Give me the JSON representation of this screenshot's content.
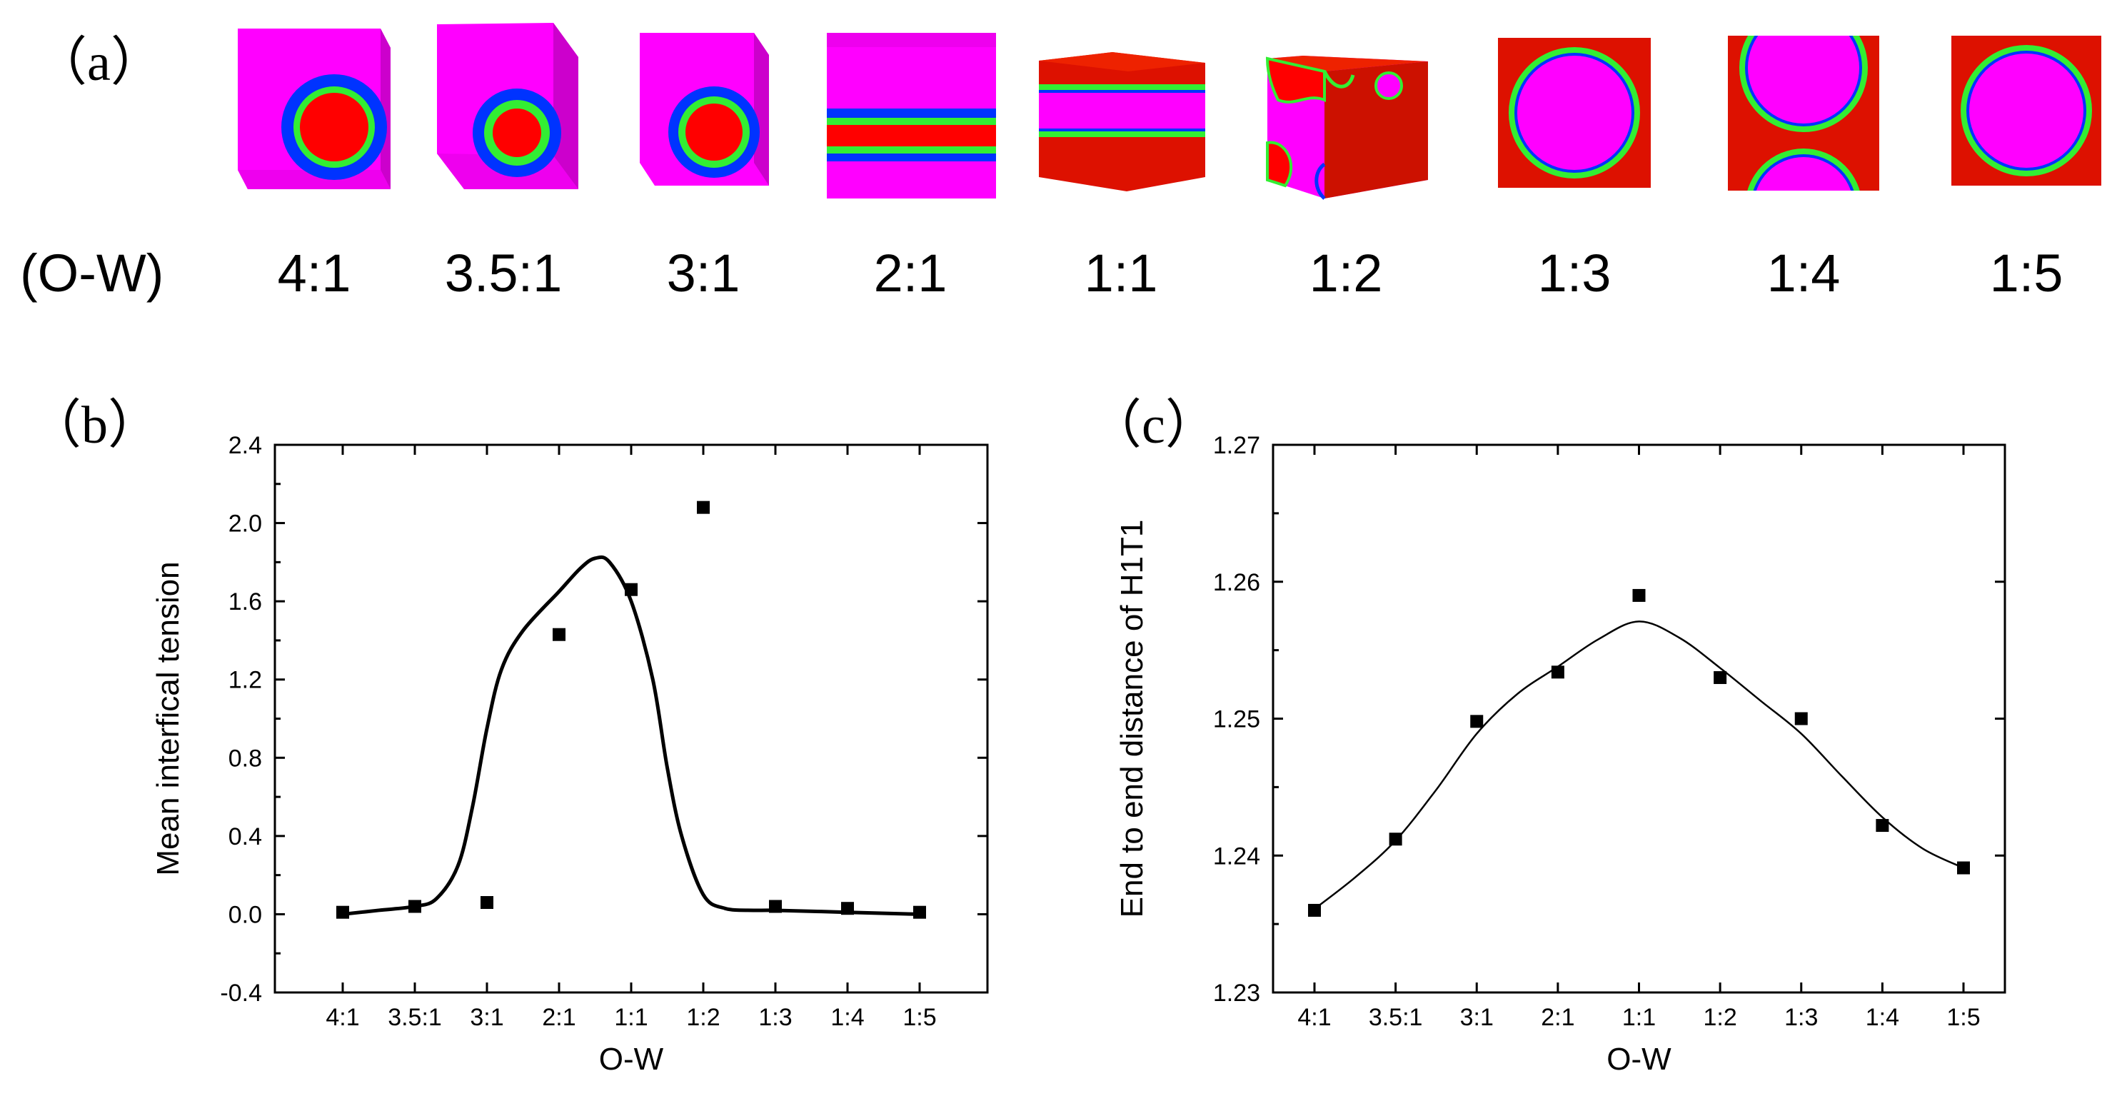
{
  "panel_a": {
    "label": "（a）",
    "ratio_prefix": "(O-W)",
    "ratios": [
      "4:1",
      "3.5:1",
      "3:1",
      "2:1",
      "1:1",
      "1:2",
      "1:3",
      "1:4",
      "1:5"
    ],
    "morphologies": [
      "droplet",
      "droplet",
      "droplet",
      "lamella",
      "lamella",
      "bicontinuous",
      "droplet",
      "cylinder",
      "droplet"
    ],
    "colors": {
      "oil": "#ff00ff",
      "water": "#ff0000",
      "shell_outer": "#0033ff",
      "shell_inner": "#33ee33"
    }
  },
  "chart_data": [
    {
      "panel_label": "（b）",
      "type": "scatter",
      "fit_line": true,
      "categories": [
        "4:1",
        "3.5:1",
        "3:1",
        "2:1",
        "1:1",
        "1:2",
        "1:3",
        "1:4",
        "1:5"
      ],
      "values": [
        0.01,
        0.04,
        0.06,
        1.43,
        1.66,
        2.08,
        0.04,
        0.03,
        0.01
      ],
      "fit_curve": [
        [
          0,
          0.0
        ],
        [
          0.5,
          0.02
        ],
        [
          1.0,
          0.04
        ],
        [
          1.3,
          0.08
        ],
        [
          1.6,
          0.25
        ],
        [
          1.8,
          0.55
        ],
        [
          2.0,
          0.95
        ],
        [
          2.2,
          1.25
        ],
        [
          2.5,
          1.45
        ],
        [
          3.0,
          1.65
        ],
        [
          3.3,
          1.77
        ],
        [
          3.5,
          1.82
        ],
        [
          3.7,
          1.8
        ],
        [
          4.0,
          1.6
        ],
        [
          4.3,
          1.2
        ],
        [
          4.5,
          0.75
        ],
        [
          4.7,
          0.4
        ],
        [
          5.0,
          0.1
        ],
        [
          5.3,
          0.03
        ],
        [
          5.7,
          0.02
        ],
        [
          6.0,
          0.02
        ],
        [
          7.0,
          0.01
        ],
        [
          8.0,
          0.0
        ]
      ],
      "xlabel": "O-W",
      "ylabel": "Mean interfical tension",
      "ylim": [
        -0.4,
        2.4
      ],
      "yticks": [
        "-0.4",
        "0.0",
        "0.4",
        "0.8",
        "1.2",
        "1.6",
        "2.0",
        "2.4"
      ]
    },
    {
      "panel_label": "（c）",
      "type": "scatter",
      "fit_line": true,
      "categories": [
        "4:1",
        "3.5:1",
        "3:1",
        "2:1",
        "1:1",
        "1:2",
        "1:3",
        "1:4",
        "1:5"
      ],
      "values": [
        1.236,
        1.2412,
        1.2498,
        1.2534,
        1.259,
        1.253,
        1.25,
        1.2422,
        1.2391
      ],
      "fit_curve": [
        [
          0,
          1.2361
        ],
        [
          0.5,
          1.2384
        ],
        [
          1.0,
          1.2411
        ],
        [
          1.5,
          1.2448
        ],
        [
          2.0,
          1.2489
        ],
        [
          2.5,
          1.2518
        ],
        [
          3.0,
          1.2538
        ],
        [
          3.5,
          1.2558
        ],
        [
          4.0,
          1.2571
        ],
        [
          4.5,
          1.2559
        ],
        [
          5.0,
          1.2537
        ],
        [
          5.5,
          1.2513
        ],
        [
          6.0,
          1.2489
        ],
        [
          6.5,
          1.2458
        ],
        [
          7.0,
          1.2428
        ],
        [
          7.5,
          1.2405
        ],
        [
          8.0,
          1.2391
        ]
      ],
      "xlabel": "O-W",
      "ylabel": "End to end distance of H1T1",
      "ylim": [
        1.23,
        1.27
      ],
      "yticks": [
        "1.23",
        "1.24",
        "1.25",
        "1.26",
        "1.27"
      ]
    }
  ]
}
